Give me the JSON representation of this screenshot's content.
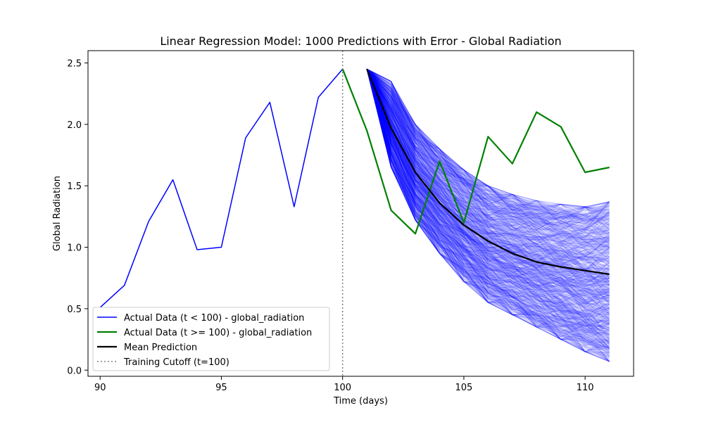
{
  "chart_data": {
    "type": "line",
    "title": "Linear Regression Model: 1000 Predictions with Error - Global Radiation",
    "xlabel": "Time (days)",
    "ylabel": "Global Radiation",
    "xlim": [
      89.5,
      112.0
    ],
    "ylim": [
      -0.05,
      2.6
    ],
    "x_ticks": [
      90,
      95,
      100,
      105,
      110
    ],
    "y_ticks": [
      0.0,
      0.5,
      1.0,
      1.5,
      2.0,
      2.5
    ],
    "x_tick_labels": [
      "90",
      "95",
      "100",
      "105",
      "110"
    ],
    "y_tick_labels": [
      "0.0",
      "0.5",
      "1.0",
      "1.5",
      "2.0",
      "2.5"
    ],
    "grid": false,
    "legend_position": "lower-left",
    "series": [
      {
        "name": "Actual Data (t < 100) - global_radiation",
        "color": "#0000ff",
        "x": [
          90,
          91,
          92,
          93,
          94,
          95,
          96,
          97,
          98,
          99,
          100
        ],
        "y": [
          0.51,
          0.69,
          1.21,
          1.55,
          0.98,
          1.0,
          1.89,
          2.18,
          1.33,
          2.22,
          2.45
        ]
      },
      {
        "name": "Actual Data (t >= 100) - global_radiation",
        "color": "#008000",
        "x": [
          100,
          101,
          102,
          103,
          104,
          105,
          106,
          107,
          108,
          109,
          110,
          111
        ],
        "y": [
          2.45,
          1.95,
          1.3,
          1.11,
          1.7,
          1.2,
          1.9,
          1.68,
          2.1,
          1.98,
          1.61,
          1.65
        ]
      },
      {
        "name": "Mean Prediction",
        "color": "#000000",
        "x": [
          101,
          102,
          103,
          104,
          105,
          106,
          107,
          108,
          109,
          110,
          111
        ],
        "y": [
          2.45,
          1.97,
          1.61,
          1.36,
          1.18,
          1.05,
          0.95,
          0.88,
          0.84,
          0.81,
          0.78
        ]
      }
    ],
    "prediction_band": {
      "count": 1000,
      "color": "#0000ff",
      "x": [
        101,
        102,
        103,
        104,
        105,
        106,
        107,
        108,
        109,
        110,
        111
      ],
      "low": [
        2.45,
        1.65,
        1.22,
        0.95,
        0.72,
        0.55,
        0.45,
        0.35,
        0.25,
        0.15,
        0.07
      ],
      "high": [
        2.45,
        2.35,
        2.0,
        1.8,
        1.63,
        1.5,
        1.43,
        1.38,
        1.35,
        1.33,
        1.37
      ]
    },
    "vline": {
      "name": "Training Cutoff (t=100)",
      "x": 100,
      "color": "#808080"
    }
  }
}
